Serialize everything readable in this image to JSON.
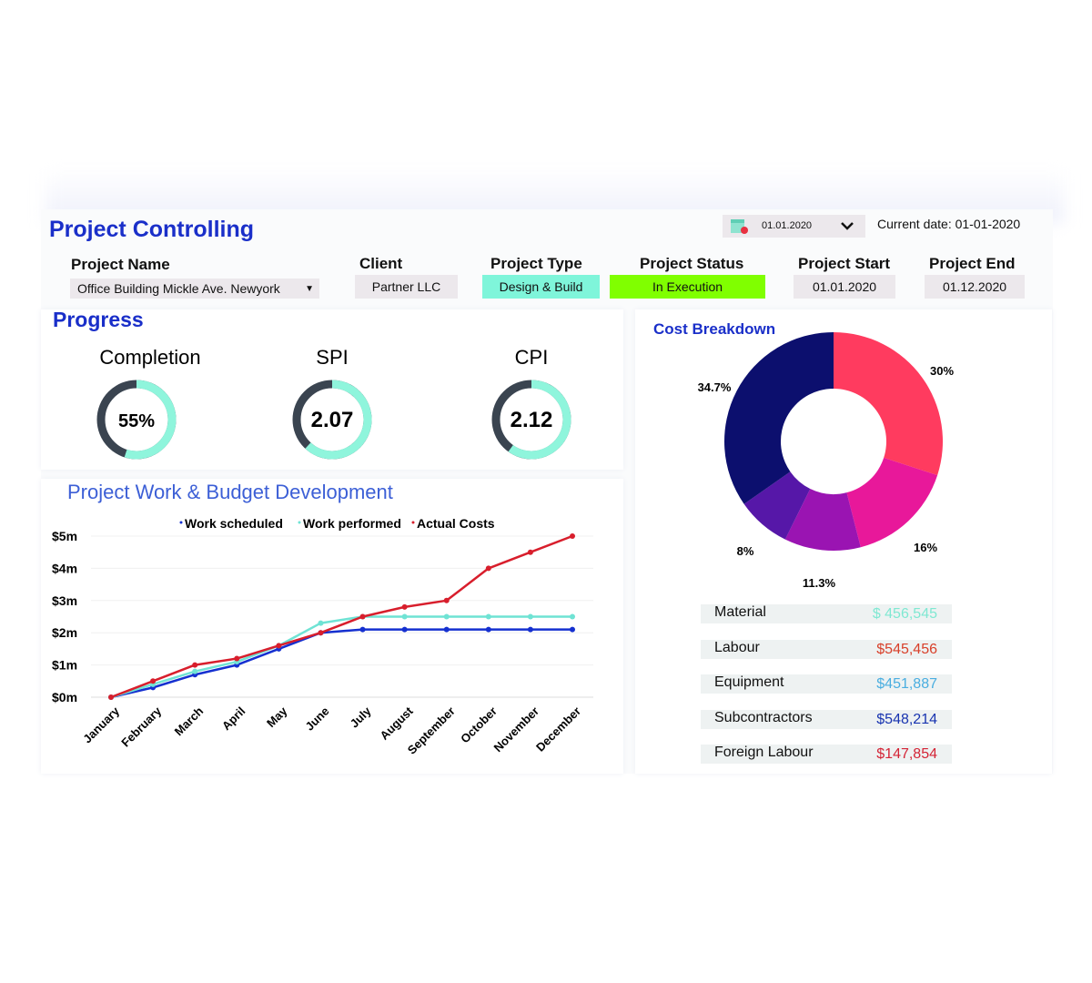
{
  "header": {
    "title": "Project Controlling",
    "date_picker": "01.01.2020",
    "current_date_label": "Current date:",
    "current_date": "01-01-2020",
    "calendar_icon": "calendar-icon",
    "chevron_icon": "chevron-down-icon"
  },
  "fields": [
    {
      "label": "Project Name",
      "value": "Office Building Mickle Ave. Newyork"
    },
    {
      "label": "Client",
      "value": "Partner LLC"
    },
    {
      "label": "Project Type",
      "value": "Design & Build",
      "color": "#7ff5da"
    },
    {
      "label": "Project Status",
      "value": "In Execution",
      "color": "#80ff00"
    },
    {
      "label": "Project Start",
      "value": "01.01.2020"
    },
    {
      "label": "Project End",
      "value": "01.12.2020"
    }
  ],
  "progress": {
    "title": "Progress",
    "gauges": [
      {
        "label": "Completion",
        "value": "55%",
        "fraction": 0.55
      },
      {
        "label": "SPI",
        "value": "2.07"
      },
      {
        "label": "CPI",
        "value": "2.12"
      }
    ]
  },
  "chart_data": [
    {
      "type": "line",
      "title": "Project Work & Budget Development",
      "categories": [
        "January",
        "February",
        "March",
        "April",
        "May",
        "June",
        "July",
        "August",
        "September",
        "October",
        "November",
        "December"
      ],
      "yticks": [
        "$0m",
        "$1m",
        "$2m",
        "$3m",
        "$4m",
        "$5m"
      ],
      "ylim": [
        0,
        5
      ],
      "yunit": "$m",
      "legend": "top",
      "grid": true,
      "series": [
        {
          "name": "Work scheduled",
          "color": "#1530d0",
          "values": [
            0,
            0.3,
            0.7,
            1.0,
            1.5,
            2.0,
            2.1,
            2.1,
            2.1,
            2.1,
            2.1,
            2.1
          ]
        },
        {
          "name": "Work performed",
          "color": "#6fe3d4",
          "values": [
            0,
            0.4,
            0.8,
            1.1,
            1.6,
            2.3,
            2.5,
            2.5,
            2.5,
            2.5,
            2.5,
            2.5
          ]
        },
        {
          "name": "Actual Costs",
          "color": "#d81e2c",
          "values": [
            0,
            0.5,
            1.0,
            1.2,
            1.6,
            2.0,
            2.5,
            2.8,
            3.0,
            4.0,
            4.5,
            5.0
          ]
        }
      ]
    },
    {
      "type": "pie",
      "title": "Cost Breakdown",
      "slices": [
        {
          "label": "30%",
          "value": 30,
          "color": "#ff3b5f"
        },
        {
          "label": "16%",
          "value": 16,
          "color": "#e8189a"
        },
        {
          "label": "11.3%",
          "value": 11.3,
          "color": "#9a14b2"
        },
        {
          "label": "8%",
          "value": 8,
          "color": "#5617a8"
        },
        {
          "label": "34.7%",
          "value": 34.7,
          "color": "#0c0f6e"
        }
      ]
    }
  ],
  "costs": [
    {
      "name": "Material",
      "value": "$ 456,545",
      "color": "#7fe8d2"
    },
    {
      "name": "Labour",
      "value": "$545,456",
      "color": "#d8402a"
    },
    {
      "name": "Equipment",
      "value": "$451,887",
      "color": "#4aaee0"
    },
    {
      "name": "Subcontractors",
      "value": "$548,214",
      "color": "#1834b0"
    },
    {
      "name": "Foreign Labour",
      "value": "$147,854",
      "color": "#d42436"
    }
  ]
}
